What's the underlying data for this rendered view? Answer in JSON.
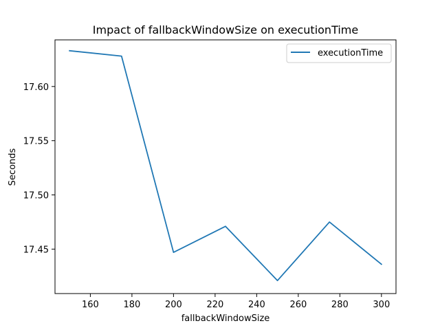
{
  "chart_data": {
    "type": "line",
    "title": "Impact of fallbackWindowSize on executionTime",
    "xlabel": "fallbackWindowSize",
    "ylabel": "Seconds",
    "xlim": [
      143,
      307
    ],
    "ylim": [
      17.409,
      17.643
    ],
    "x_ticks": [
      160,
      180,
      200,
      220,
      240,
      260,
      280,
      300
    ],
    "x_tick_labels": [
      "160",
      "180",
      "200",
      "220",
      "240",
      "260",
      "280",
      "300"
    ],
    "y_ticks": [
      17.45,
      17.5,
      17.55,
      17.6
    ],
    "y_tick_labels": [
      "17.45",
      "17.50",
      "17.55",
      "17.60"
    ],
    "grid": false,
    "legend_position": "top-right",
    "series": [
      {
        "name": "executionTime",
        "color": "#1f77b4",
        "x": [
          150,
          175,
          200,
          225,
          250,
          275,
          300
        ],
        "y": [
          17.633,
          17.628,
          17.447,
          17.471,
          17.421,
          17.475,
          17.436
        ]
      }
    ]
  }
}
